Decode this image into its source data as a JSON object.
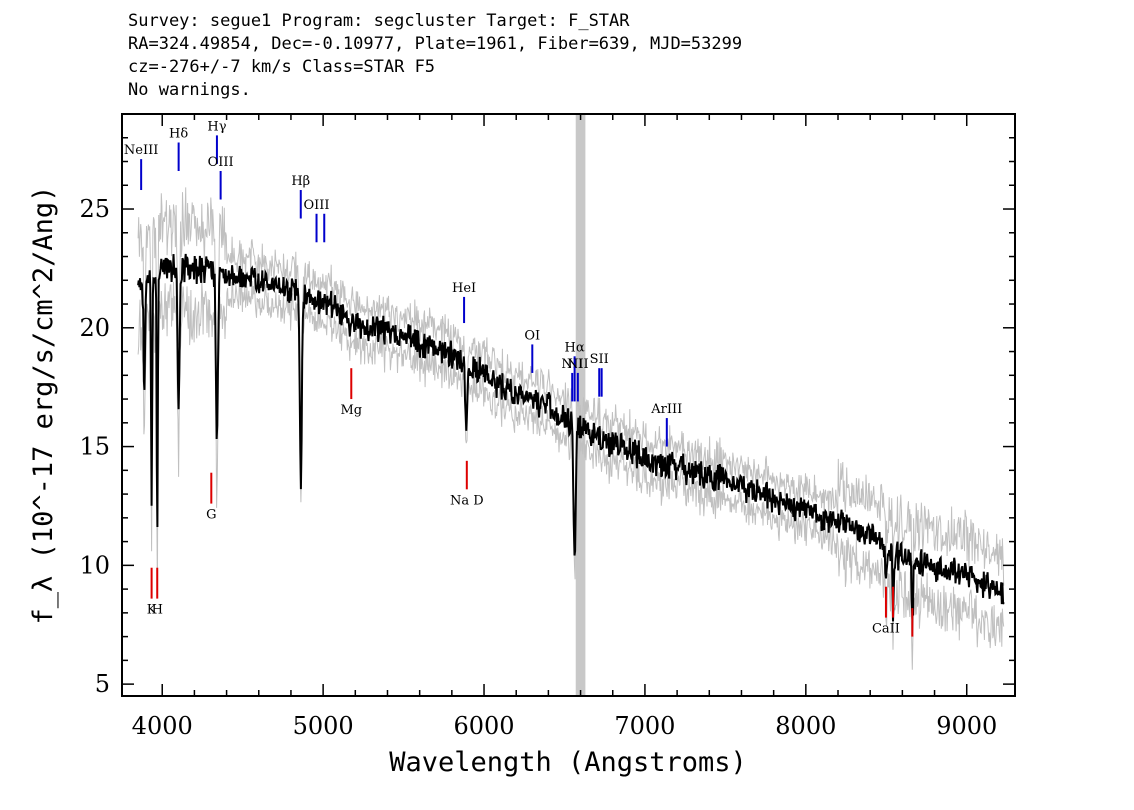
{
  "header": {
    "line1": "Survey: segue1 Program: segcluster Target: F_STAR",
    "line2": "RA=324.49854, Dec=-0.10977, Plate=1961, Fiber=639, MJD=53299",
    "line3": "cz=-276+/-7 km/s Class=STAR F5",
    "line4": "No warnings."
  },
  "chart_data": {
    "type": "line",
    "xlabel": "Wavelength (Angstroms)",
    "ylabel": "f_λ (10^-17 erg/s/cm^2/Ang)",
    "xlim": [
      3750,
      9300
    ],
    "ylim": [
      4.5,
      29
    ],
    "x_ticks": [
      4000,
      5000,
      6000,
      7000,
      8000,
      9000
    ],
    "y_ticks": [
      5,
      10,
      15,
      20,
      25
    ],
    "masked_band": [
      6570,
      6630
    ],
    "colors": {
      "flux": "#000000",
      "noise": "#c0c0c0",
      "emission": "#0000cc",
      "absorption": "#dd0000",
      "mask": "#c8c8c8"
    },
    "continuum": [
      [
        3850,
        21.8
      ],
      [
        4000,
        22.6
      ],
      [
        4200,
        22.5
      ],
      [
        4500,
        22.2
      ],
      [
        4800,
        21.6
      ],
      [
        5000,
        21.1
      ],
      [
        5200,
        20.2
      ],
      [
        5500,
        19.6
      ],
      [
        5800,
        18.9
      ],
      [
        6000,
        18.0
      ],
      [
        6200,
        17.2
      ],
      [
        6400,
        16.7
      ],
      [
        6560,
        15.8
      ],
      [
        6650,
        15.7
      ],
      [
        6800,
        15.1
      ],
      [
        7000,
        14.5
      ],
      [
        7500,
        13.6
      ],
      [
        8000,
        12.3
      ],
      [
        8300,
        11.6
      ],
      [
        8600,
        10.3
      ],
      [
        9000,
        9.6
      ],
      [
        9230,
        8.7
      ]
    ],
    "absorption_dips": [
      [
        3889,
        17.5,
        10
      ],
      [
        3934,
        12.3,
        7
      ],
      [
        3969,
        10.6,
        7
      ],
      [
        4102,
        16.2,
        12
      ],
      [
        4340,
        15.0,
        12
      ],
      [
        4861,
        13.5,
        12
      ],
      [
        5172,
        19.6,
        12
      ],
      [
        5890,
        15.5,
        12
      ],
      [
        6563,
        10.5,
        14
      ],
      [
        8498,
        9.5,
        8
      ],
      [
        8542,
        8.3,
        8
      ],
      [
        8662,
        7.5,
        8
      ]
    ],
    "emission_lines": [
      {
        "label": "NeIII",
        "wl": 3869,
        "ytop": 27.1,
        "ybot": 25.8
      },
      {
        "label": "Hδ",
        "wl": 4102,
        "ytop": 27.8,
        "ybot": 26.6
      },
      {
        "label": "Hγ",
        "wl": 4340,
        "ytop": 28.1,
        "ybot": 26.9
      },
      {
        "label": "OIII",
        "wl": 4363,
        "ytop": 26.6,
        "ybot": 25.4
      },
      {
        "label": "Hβ",
        "wl": 4861,
        "ytop": 25.8,
        "ybot": 24.6
      },
      {
        "label": "OIII",
        "wl": 4959,
        "ytop": 24.8,
        "ybot": 23.6
      },
      {
        "label": "",
        "wl": 5007,
        "ytop": 24.8,
        "ybot": 23.6
      },
      {
        "label": "HeI",
        "wl": 5876,
        "ytop": 21.3,
        "ybot": 20.2
      },
      {
        "label": "OI",
        "wl": 6300,
        "ytop": 19.3,
        "ybot": 18.1
      },
      {
        "label": "NII",
        "wl": 6548,
        "ytop": 18.1,
        "ybot": 16.9
      },
      {
        "label": "Hα",
        "wl": 6563,
        "ytop": 18.8,
        "ybot": 16.9
      },
      {
        "label": "NII",
        "wl": 6583,
        "ytop": 18.1,
        "ybot": 16.9
      },
      {
        "label": "SII",
        "wl": 6716,
        "ytop": 18.3,
        "ybot": 17.1
      },
      {
        "label": "",
        "wl": 6731,
        "ytop": 18.3,
        "ybot": 17.1
      },
      {
        "label": "ArIII",
        "wl": 7136,
        "ytop": 16.2,
        "ybot": 15.0
      }
    ],
    "absorption_lines": [
      {
        "label": "K",
        "wl": 3934,
        "ytop": 9.9,
        "ybot": 8.6
      },
      {
        "label": "H",
        "wl": 3969,
        "ytop": 9.9,
        "ybot": 8.6
      },
      {
        "label": "G",
        "wl": 4305,
        "ytop": 13.9,
        "ybot": 12.6
      },
      {
        "label": "Mg",
        "wl": 5175,
        "ytop": 18.3,
        "ybot": 17.0
      },
      {
        "label": "Na D",
        "wl": 5893,
        "ytop": 14.4,
        "ybot": 13.2
      },
      {
        "label": "CaII",
        "wl": 8498,
        "ytop": 9.1,
        "ybot": 7.8
      },
      {
        "label": "",
        "wl": 8542,
        "ytop": 9.1,
        "ybot": 7.8
      },
      {
        "label": "",
        "wl": 8662,
        "ytop": 8.2,
        "ybot": 7.0
      }
    ]
  }
}
